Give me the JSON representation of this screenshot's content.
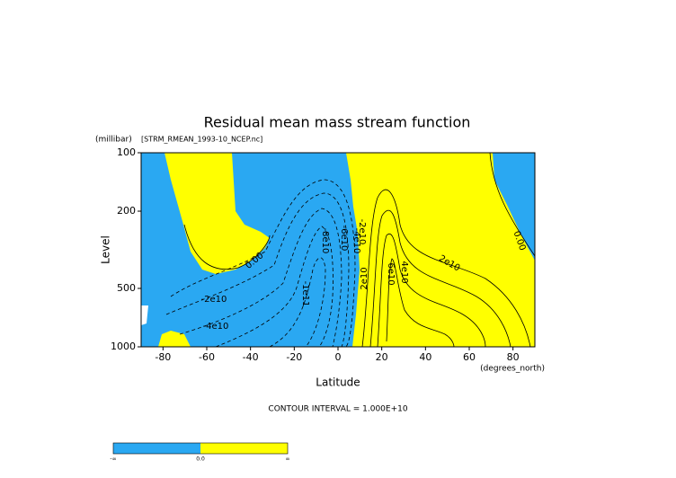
{
  "chart_data": {
    "type": "contour",
    "title": "Residual mean mass stream function",
    "subtitle": "[STRM_RMEAN_1993-10_NCEP.nc]",
    "y_unit": "(millibar)",
    "x_unit": "(degrees_north)",
    "xlabel": "Latitude",
    "ylabel": "Level",
    "xlim": [
      -90,
      90
    ],
    "ylim": [
      1000,
      100
    ],
    "yscale": "log",
    "xticks": [
      -80,
      -60,
      -40,
      -20,
      0,
      20,
      40,
      60,
      80
    ],
    "yticks": [
      100,
      200,
      500,
      1000
    ],
    "contour_labels": [
      "0.00",
      "-2e10",
      "-4e10",
      "-1e11",
      "-8e10",
      "-6e10",
      "-4e10",
      "-2e10",
      "2e10",
      "6e10",
      "4e10",
      "2e10",
      "0.00"
    ],
    "footnote": "CONTOUR INTERVAL = 1.000E+10",
    "colors": {
      "negative": "#2aa8f2",
      "positive": "#ffff00"
    },
    "colorbar_labels": [
      "-∞",
      "0.0",
      "∞"
    ]
  }
}
